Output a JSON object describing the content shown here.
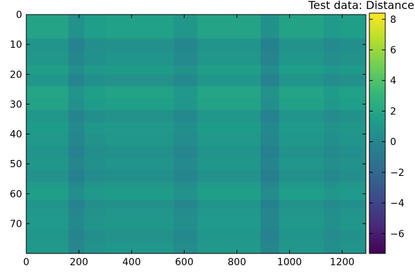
{
  "chart_data": {
    "type": "heatmap",
    "title": "Test data: Distance",
    "xlabel": "",
    "ylabel": "",
    "x_range": [
      0,
      1290
    ],
    "y_range": [
      0,
      80
    ],
    "y_inverted": true,
    "grid": false,
    "x_ticks": [
      0,
      200,
      400,
      600,
      800,
      1000,
      1200
    ],
    "y_ticks": [
      0,
      10,
      20,
      30,
      40,
      50,
      60,
      70
    ],
    "colorbar": {
      "range": [
        -7.3,
        8.4
      ],
      "ticks": [
        -6,
        -4,
        -2,
        0,
        2,
        4,
        6,
        8
      ],
      "tick_labels": [
        "−6",
        "−4",
        "−2",
        "0",
        "2",
        "4",
        "6",
        "8"
      ],
      "colormap": [
        "#440154",
        "#482878",
        "#3e4989",
        "#31688e",
        "#26828e",
        "#1f9e89",
        "#35b779",
        "#6ece58",
        "#b5de2b",
        "#fde725"
      ]
    },
    "row_bands": [
      {
        "y": [
          0,
          8
        ],
        "value": 1.2
      },
      {
        "y": [
          8,
          12
        ],
        "value": 0.2
      },
      {
        "y": [
          12,
          17
        ],
        "value": 0.4
      },
      {
        "y": [
          17,
          20
        ],
        "value": 0.9
      },
      {
        "y": [
          20,
          24
        ],
        "value": 0.3
      },
      {
        "y": [
          24,
          28
        ],
        "value": 1.3
      },
      {
        "y": [
          28,
          32
        ],
        "value": 1.1
      },
      {
        "y": [
          32,
          36
        ],
        "value": 0.3
      },
      {
        "y": [
          36,
          40
        ],
        "value": 0.7
      },
      {
        "y": [
          40,
          44
        ],
        "value": 0.5
      },
      {
        "y": [
          44,
          48
        ],
        "value": 0.2
      },
      {
        "y": [
          48,
          52
        ],
        "value": 0.4
      },
      {
        "y": [
          52,
          56
        ],
        "value": 0.1
      },
      {
        "y": [
          56,
          58
        ],
        "value": 0.6
      },
      {
        "y": [
          58,
          62
        ],
        "value": 0.9
      },
      {
        "y": [
          62,
          65
        ],
        "value": 0.2
      },
      {
        "y": [
          65,
          68
        ],
        "value": 0.5
      },
      {
        "y": [
          68,
          72
        ],
        "value": 0.6
      },
      {
        "y": [
          72,
          76
        ],
        "value": 0.3
      },
      {
        "y": [
          76,
          80
        ],
        "value": 0.5
      }
    ],
    "column_bands": [
      {
        "x": [
          0,
          160
        ],
        "value": 0.6
      },
      {
        "x": [
          160,
          220
        ],
        "value": -0.5
      },
      {
        "x": [
          220,
          300
        ],
        "value": 0.2
      },
      {
        "x": [
          300,
          560
        ],
        "value": 0.4
      },
      {
        "x": [
          560,
          650
        ],
        "value": -0.2
      },
      {
        "x": [
          650,
          890
        ],
        "value": 0.6
      },
      {
        "x": [
          890,
          960
        ],
        "value": -0.6
      },
      {
        "x": [
          960,
          1130
        ],
        "value": 0.5
      },
      {
        "x": [
          1130,
          1190
        ],
        "value": 0.0
      },
      {
        "x": [
          1190,
          1290
        ],
        "value": 0.3
      }
    ]
  }
}
